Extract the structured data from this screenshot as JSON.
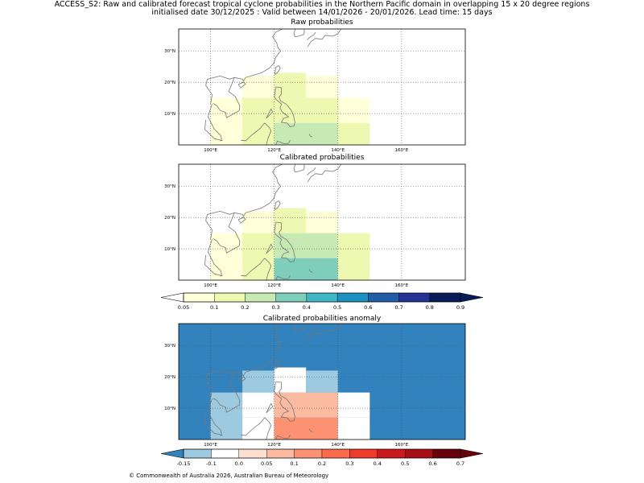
{
  "title": {
    "line1": "ACCESS_S2: Raw and calibrated forecast tropical cyclone probabilities in the Northern Pacific domain in overlapping 15 x 20 degree regions",
    "line2": "initialised date 30/12/2025 :  Valid between 14/01/2026 - 20/01/2026. Lead time: 15 days"
  },
  "footer": {
    "copyright": "© Commonwealth of Australia 2026, Australian Bureau of Meteorology"
  },
  "chart_data": [
    {
      "type": "heatmap",
      "title": "Raw probabilities",
      "xticks": [
        "100°E",
        "120°E",
        "140°E",
        "160°E"
      ],
      "xtick_values": [
        100,
        120,
        140,
        160
      ],
      "yticks": [
        "10°N",
        "20°N",
        "30°N"
      ],
      "ytick_values": [
        10,
        20,
        30
      ],
      "xlim": [
        90,
        180
      ],
      "ylim": [
        0,
        37
      ],
      "grid": true,
      "cells": [
        {
          "lon": [
            110,
            120
          ],
          "lat": [
            15,
            22
          ],
          "value": 0.07
        },
        {
          "lon": [
            120,
            130
          ],
          "lat": [
            15,
            23
          ],
          "value": 0.12
        },
        {
          "lon": [
            130,
            140
          ],
          "lat": [
            15,
            22
          ],
          "value": 0.07
        },
        {
          "lon": [
            100,
            110
          ],
          "lat": [
            0,
            15
          ],
          "value": 0.07
        },
        {
          "lon": [
            110,
            130
          ],
          "lat": [
            7,
            15
          ],
          "value": 0.12
        },
        {
          "lon": [
            130,
            140
          ],
          "lat": [
            7,
            15
          ],
          "value": 0.15
        },
        {
          "lon": [
            140,
            150
          ],
          "lat": [
            7,
            15
          ],
          "value": 0.07
        },
        {
          "lon": [
            110,
            120
          ],
          "lat": [
            0,
            7
          ],
          "value": 0.12
        },
        {
          "lon": [
            120,
            140
          ],
          "lat": [
            0,
            7
          ],
          "value": 0.22
        },
        {
          "lon": [
            140,
            150
          ],
          "lat": [
            0,
            7
          ],
          "value": 0.12
        }
      ]
    },
    {
      "type": "heatmap",
      "title": "Calibrated probabilities",
      "xticks": [
        "100°E",
        "120°E",
        "140°E",
        "160°E"
      ],
      "xtick_values": [
        100,
        120,
        140,
        160
      ],
      "yticks": [
        "10°N",
        "20°N",
        "30°N"
      ],
      "ytick_values": [
        10,
        20,
        30
      ],
      "xlim": [
        90,
        180
      ],
      "ylim": [
        0,
        37
      ],
      "grid": true,
      "cells": [
        {
          "lon": [
            110,
            120
          ],
          "lat": [
            15,
            22
          ],
          "value": 0.07
        },
        {
          "lon": [
            120,
            130
          ],
          "lat": [
            15,
            23
          ],
          "value": 0.12
        },
        {
          "lon": [
            130,
            140
          ],
          "lat": [
            15,
            22
          ],
          "value": 0.07
        },
        {
          "lon": [
            100,
            110
          ],
          "lat": [
            0,
            15
          ],
          "value": 0.07
        },
        {
          "lon": [
            110,
            120
          ],
          "lat": [
            7,
            15
          ],
          "value": 0.12
        },
        {
          "lon": [
            120,
            140
          ],
          "lat": [
            7,
            15
          ],
          "value": 0.22
        },
        {
          "lon": [
            140,
            150
          ],
          "lat": [
            7,
            15
          ],
          "value": 0.12
        },
        {
          "lon": [
            110,
            120
          ],
          "lat": [
            0,
            7
          ],
          "value": 0.12
        },
        {
          "lon": [
            120,
            140
          ],
          "lat": [
            0,
            7
          ],
          "value": 0.32
        },
        {
          "lon": [
            140,
            150
          ],
          "lat": [
            0,
            7
          ],
          "value": 0.12
        }
      ]
    },
    {
      "type": "colorbar",
      "levels": [
        "0.05",
        "0.1",
        "0.2",
        "0.3",
        "0.4",
        "0.5",
        "0.6",
        "0.7",
        "0.8",
        "0.9"
      ],
      "colors": [
        "#ffffd9",
        "#edf8b1",
        "#c7e9b4",
        "#7fcdbb",
        "#41b6c4",
        "#1d91c0",
        "#225ea8",
        "#253494",
        "#081d58"
      ],
      "under_color": "#ffffff",
      "over_color": "#081d58"
    },
    {
      "type": "heatmap",
      "title": "Calibrated probabilities anomaly",
      "xticks": [
        "100°E",
        "120°E",
        "140°E",
        "160°E"
      ],
      "xtick_values": [
        100,
        120,
        140,
        160
      ],
      "yticks": [
        "10°N",
        "20°N",
        "30°N"
      ],
      "ytick_values": [
        10,
        20,
        30
      ],
      "xlim": [
        90,
        180
      ],
      "ylim": [
        0,
        37
      ],
      "grid": true,
      "background_value": -0.2,
      "cells": [
        {
          "lon": [
            110,
            120
          ],
          "lat": [
            15,
            22
          ],
          "value": -0.12
        },
        {
          "lon": [
            120,
            130
          ],
          "lat": [
            15,
            23
          ],
          "value": -0.02
        },
        {
          "lon": [
            130,
            140
          ],
          "lat": [
            15,
            22
          ],
          "value": -0.12
        },
        {
          "lon": [
            100,
            110
          ],
          "lat": [
            0,
            15
          ],
          "value": -0.12
        },
        {
          "lon": [
            110,
            120
          ],
          "lat": [
            7,
            15
          ],
          "value": -0.02
        },
        {
          "lon": [
            120,
            140
          ],
          "lat": [
            7,
            15
          ],
          "value": 0.05
        },
        {
          "lon": [
            140,
            150
          ],
          "lat": [
            7,
            15
          ],
          "value": -0.02
        },
        {
          "lon": [
            110,
            120
          ],
          "lat": [
            0,
            7
          ],
          "value": -0.02
        },
        {
          "lon": [
            120,
            140
          ],
          "lat": [
            0,
            7
          ],
          "value": 0.15
        },
        {
          "lon": [
            140,
            150
          ],
          "lat": [
            0,
            7
          ],
          "value": -0.02
        }
      ]
    },
    {
      "type": "colorbar",
      "levels": [
        "-0.15",
        "-0.1",
        "0.0",
        "0.05",
        "0.1",
        "0.2",
        "0.3",
        "0.4",
        "0.5",
        "0.6",
        "0.7"
      ],
      "colors": [
        "#9ecae1",
        "#ffffff",
        "#fee0d2",
        "#fcbba1",
        "#fc9272",
        "#fb6a4a",
        "#ef3b2c",
        "#cb181d",
        "#a50f15",
        "#67000d"
      ],
      "under_color": "#3182bd",
      "over_color": "#67000d"
    }
  ]
}
